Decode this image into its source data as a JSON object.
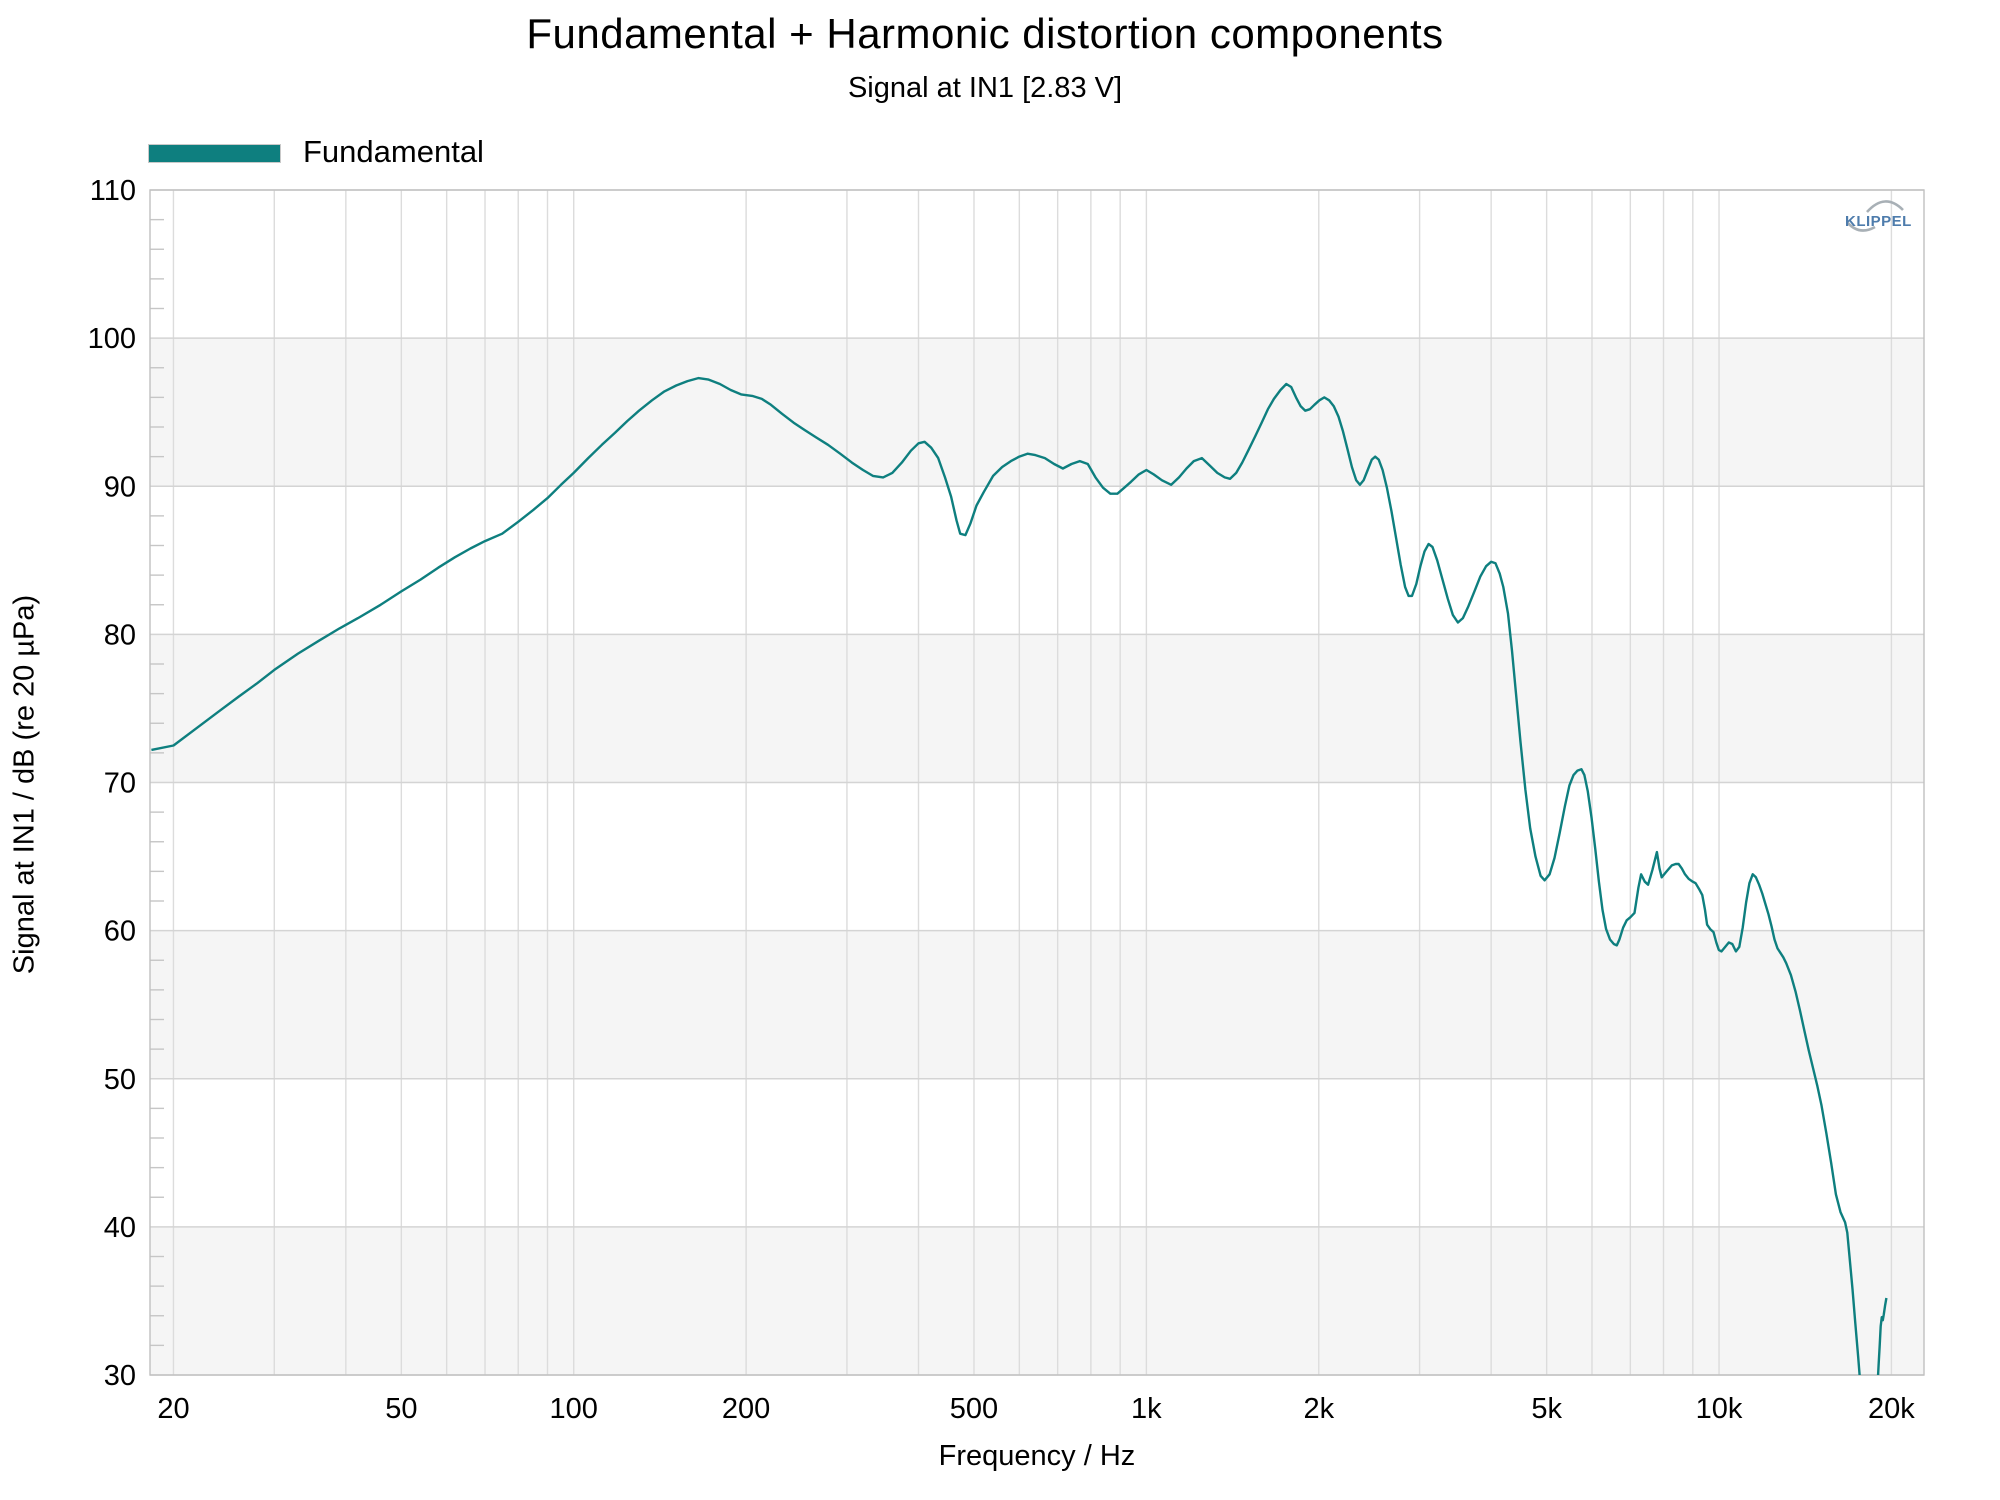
{
  "page": {
    "watermark": "KLIPPEL",
    "colors": {
      "curve": "#0e7f7f",
      "band": "#f5f5f5",
      "grid_vertical": "#dcdcdc",
      "grid_horizontal": "#d4d4d4",
      "spine": "#c0c0c0",
      "minor_tick": "#c6c6c6",
      "logo_blue": "#4e7cac",
      "logo_arc": "#a8b0b6"
    }
  },
  "chart_data": {
    "type": "line",
    "title": "Fundamental + Harmonic distortion components",
    "subtitle": "Signal at IN1 [2.83 V]",
    "xlabel": "Frequency / Hz",
    "ylabel": "Signal at IN1 / dB (re 20 µPa)",
    "x_scale": "log",
    "xlim": [
      18.2,
      22800
    ],
    "ylim": [
      30,
      110
    ],
    "y_major_step": 10,
    "y_minor_step": 2,
    "grid": "on",
    "legend_position": "top-left",
    "bands_high_edges": [
      100,
      80,
      60,
      40
    ],
    "x_gridlines": [
      20,
      30,
      40,
      50,
      60,
      70,
      80,
      90,
      100,
      200,
      300,
      400,
      500,
      600,
      700,
      800,
      900,
      1000,
      2000,
      3000,
      4000,
      5000,
      6000,
      7000,
      8000,
      9000,
      10000,
      20000
    ],
    "x_ticks": [
      {
        "value": 20,
        "label": "20"
      },
      {
        "value": 50,
        "label": "50"
      },
      {
        "value": 100,
        "label": "100"
      },
      {
        "value": 200,
        "label": "200"
      },
      {
        "value": 500,
        "label": "500"
      },
      {
        "value": 1000,
        "label": "1k"
      },
      {
        "value": 2000,
        "label": "2k"
      },
      {
        "value": 5000,
        "label": "5k"
      },
      {
        "value": 10000,
        "label": "10k"
      },
      {
        "value": 20000,
        "label": "20k"
      }
    ],
    "y_ticks": [
      {
        "value": 110,
        "label": "110"
      },
      {
        "value": 100,
        "label": "100"
      },
      {
        "value": 90,
        "label": "90"
      },
      {
        "value": 80,
        "label": "80"
      },
      {
        "value": 70,
        "label": "70"
      },
      {
        "value": 60,
        "label": "60"
      },
      {
        "value": 50,
        "label": "50"
      },
      {
        "value": 40,
        "label": "40"
      },
      {
        "value": 30,
        "label": "30"
      }
    ],
    "legend": [
      {
        "label": "Fundamental",
        "color": "#0e7f7f"
      }
    ],
    "series": [
      {
        "name": "Fundamental",
        "color": "#0e7f7f",
        "points": [
          [
            18.3,
            72.2
          ],
          [
            20,
            72.5
          ],
          [
            22,
            73.7
          ],
          [
            24,
            74.8
          ],
          [
            26,
            75.8
          ],
          [
            28,
            76.7
          ],
          [
            30,
            77.6
          ],
          [
            33,
            78.7
          ],
          [
            36,
            79.6
          ],
          [
            39,
            80.4
          ],
          [
            42,
            81.1
          ],
          [
            46,
            82.0
          ],
          [
            50,
            82.9
          ],
          [
            54,
            83.7
          ],
          [
            58,
            84.5
          ],
          [
            62,
            85.2
          ],
          [
            66,
            85.8
          ],
          [
            70,
            86.3
          ],
          [
            75,
            86.8
          ],
          [
            80,
            87.6
          ],
          [
            85,
            88.4
          ],
          [
            90,
            89.2
          ],
          [
            95,
            90.1
          ],
          [
            100,
            90.9
          ],
          [
            106,
            91.9
          ],
          [
            112,
            92.8
          ],
          [
            118,
            93.6
          ],
          [
            124,
            94.4
          ],
          [
            130,
            95.1
          ],
          [
            137,
            95.8
          ],
          [
            144,
            96.4
          ],
          [
            151,
            96.8
          ],
          [
            158,
            97.1
          ],
          [
            165,
            97.3
          ],
          [
            172,
            97.2
          ],
          [
            180,
            96.9
          ],
          [
            188,
            96.5
          ],
          [
            196,
            96.2
          ],
          [
            205,
            96.1
          ],
          [
            213,
            95.9
          ],
          [
            221,
            95.5
          ],
          [
            231,
            94.9
          ],
          [
            242,
            94.3
          ],
          [
            253,
            93.8
          ],
          [
            265,
            93.3
          ],
          [
            278,
            92.8
          ],
          [
            292,
            92.2
          ],
          [
            306,
            91.6
          ],
          [
            320,
            91.1
          ],
          [
            333,
            90.7
          ],
          [
            347,
            90.6
          ],
          [
            360,
            90.9
          ],
          [
            374,
            91.6
          ],
          [
            388,
            92.4
          ],
          [
            400,
            92.9
          ],
          [
            410,
            93.0
          ],
          [
            421,
            92.6
          ],
          [
            433,
            91.9
          ],
          [
            445,
            90.6
          ],
          [
            456,
            89.3
          ],
          [
            466,
            87.7
          ],
          [
            473,
            86.8
          ],
          [
            483,
            86.7
          ],
          [
            493,
            87.5
          ],
          [
            505,
            88.7
          ],
          [
            520,
            89.6
          ],
          [
            540,
            90.7
          ],
          [
            560,
            91.3
          ],
          [
            580,
            91.7
          ],
          [
            600,
            92.0
          ],
          [
            620,
            92.2
          ],
          [
            640,
            92.1
          ],
          [
            665,
            91.9
          ],
          [
            690,
            91.5
          ],
          [
            715,
            91.2
          ],
          [
            740,
            91.5
          ],
          [
            765,
            91.7
          ],
          [
            790,
            91.5
          ],
          [
            815,
            90.6
          ],
          [
            840,
            89.9
          ],
          [
            865,
            89.5
          ],
          [
            890,
            89.5
          ],
          [
            915,
            89.9
          ],
          [
            940,
            90.3
          ],
          [
            970,
            90.8
          ],
          [
            1000,
            91.1
          ],
          [
            1030,
            90.8
          ],
          [
            1065,
            90.4
          ],
          [
            1105,
            90.1
          ],
          [
            1140,
            90.6
          ],
          [
            1175,
            91.2
          ],
          [
            1210,
            91.7
          ],
          [
            1250,
            91.9
          ],
          [
            1290,
            91.4
          ],
          [
            1330,
            90.9
          ],
          [
            1370,
            90.6
          ],
          [
            1400,
            90.5
          ],
          [
            1435,
            90.9
          ],
          [
            1470,
            91.6
          ],
          [
            1510,
            92.5
          ],
          [
            1550,
            93.4
          ],
          [
            1590,
            94.3
          ],
          [
            1630,
            95.2
          ],
          [
            1670,
            95.9
          ],
          [
            1715,
            96.5
          ],
          [
            1755,
            96.9
          ],
          [
            1790,
            96.7
          ],
          [
            1825,
            96.0
          ],
          [
            1860,
            95.4
          ],
          [
            1895,
            95.1
          ],
          [
            1930,
            95.2
          ],
          [
            1965,
            95.5
          ],
          [
            2005,
            95.8
          ],
          [
            2045,
            96.0
          ],
          [
            2085,
            95.8
          ],
          [
            2125,
            95.4
          ],
          [
            2165,
            94.7
          ],
          [
            2205,
            93.7
          ],
          [
            2245,
            92.5
          ],
          [
            2285,
            91.3
          ],
          [
            2325,
            90.4
          ],
          [
            2360,
            90.1
          ],
          [
            2395,
            90.4
          ],
          [
            2435,
            91.1
          ],
          [
            2475,
            91.8
          ],
          [
            2510,
            92.0
          ],
          [
            2545,
            91.8
          ],
          [
            2585,
            91.1
          ],
          [
            2630,
            89.9
          ],
          [
            2680,
            88.3
          ],
          [
            2730,
            86.5
          ],
          [
            2780,
            84.7
          ],
          [
            2830,
            83.2
          ],
          [
            2870,
            82.6
          ],
          [
            2910,
            82.6
          ],
          [
            2960,
            83.4
          ],
          [
            3010,
            84.6
          ],
          [
            3060,
            85.6
          ],
          [
            3110,
            86.1
          ],
          [
            3160,
            85.9
          ],
          [
            3220,
            85.0
          ],
          [
            3290,
            83.7
          ],
          [
            3360,
            82.4
          ],
          [
            3430,
            81.3
          ],
          [
            3500,
            80.8
          ],
          [
            3570,
            81.1
          ],
          [
            3650,
            81.9
          ],
          [
            3740,
            82.9
          ],
          [
            3830,
            83.9
          ],
          [
            3920,
            84.6
          ],
          [
            4000,
            84.9
          ],
          [
            4070,
            84.8
          ],
          [
            4140,
            84.1
          ],
          [
            4200,
            83.2
          ],
          [
            4280,
            81.4
          ],
          [
            4350,
            78.9
          ],
          [
            4420,
            76.0
          ],
          [
            4500,
            72.8
          ],
          [
            4590,
            69.5
          ],
          [
            4680,
            66.9
          ],
          [
            4780,
            65.0
          ],
          [
            4880,
            63.7
          ],
          [
            4960,
            63.4
          ],
          [
            5060,
            63.8
          ],
          [
            5160,
            64.9
          ],
          [
            5270,
            66.6
          ],
          [
            5380,
            68.4
          ],
          [
            5480,
            69.8
          ],
          [
            5570,
            70.5
          ],
          [
            5660,
            70.8
          ],
          [
            5750,
            70.9
          ],
          [
            5820,
            70.5
          ],
          [
            5900,
            69.4
          ],
          [
            5990,
            67.6
          ],
          [
            6080,
            65.5
          ],
          [
            6170,
            63.3
          ],
          [
            6260,
            61.4
          ],
          [
            6350,
            60.1
          ],
          [
            6450,
            59.4
          ],
          [
            6550,
            59.1
          ],
          [
            6630,
            59.0
          ],
          [
            6700,
            59.4
          ],
          [
            6800,
            60.2
          ],
          [
            6900,
            60.7
          ],
          [
            7000,
            60.9
          ],
          [
            7120,
            61.2
          ],
          [
            7230,
            62.9
          ],
          [
            7310,
            63.8
          ],
          [
            7420,
            63.3
          ],
          [
            7520,
            63.1
          ],
          [
            7650,
            64.1
          ],
          [
            7790,
            65.3
          ],
          [
            7870,
            64.2
          ],
          [
            7940,
            63.6
          ],
          [
            8100,
            64.0
          ],
          [
            8270,
            64.4
          ],
          [
            8400,
            64.5
          ],
          [
            8500,
            64.5
          ],
          [
            8610,
            64.2
          ],
          [
            8720,
            63.8
          ],
          [
            8850,
            63.5
          ],
          [
            9000,
            63.3
          ],
          [
            9100,
            63.2
          ],
          [
            9230,
            62.8
          ],
          [
            9350,
            62.4
          ],
          [
            9450,
            61.4
          ],
          [
            9530,
            60.4
          ],
          [
            9650,
            60.1
          ],
          [
            9780,
            59.9
          ],
          [
            9890,
            59.2
          ],
          [
            9990,
            58.7
          ],
          [
            10100,
            58.6
          ],
          [
            10250,
            58.9
          ],
          [
            10400,
            59.2
          ],
          [
            10550,
            59.1
          ],
          [
            10700,
            58.6
          ],
          [
            10850,
            58.9
          ],
          [
            11000,
            60.2
          ],
          [
            11150,
            61.9
          ],
          [
            11300,
            63.2
          ],
          [
            11450,
            63.8
          ],
          [
            11600,
            63.6
          ],
          [
            11750,
            63.1
          ],
          [
            11900,
            62.5
          ],
          [
            12050,
            61.8
          ],
          [
            12200,
            61.1
          ],
          [
            12350,
            60.3
          ],
          [
            12500,
            59.4
          ],
          [
            12650,
            58.8
          ],
          [
            12800,
            58.5
          ],
          [
            12950,
            58.2
          ],
          [
            13100,
            57.8
          ],
          [
            13350,
            57.0
          ],
          [
            13600,
            55.9
          ],
          [
            13850,
            54.6
          ],
          [
            14100,
            53.2
          ],
          [
            14350,
            51.9
          ],
          [
            14600,
            50.7
          ],
          [
            14850,
            49.5
          ],
          [
            15100,
            48.2
          ],
          [
            15400,
            46.3
          ],
          [
            15700,
            44.3
          ],
          [
            16000,
            42.2
          ],
          [
            16300,
            41.0
          ],
          [
            16600,
            40.3
          ],
          [
            16750,
            39.6
          ],
          [
            16900,
            38.0
          ],
          [
            17100,
            35.8
          ],
          [
            17300,
            33.5
          ],
          [
            17500,
            31.2
          ],
          [
            17600,
            30.0
          ],
          [
            17800,
            27.5
          ],
          [
            18100,
            25.5
          ],
          [
            18400,
            25.0
          ],
          [
            18700,
            26.5
          ],
          [
            18900,
            29.0
          ],
          [
            19000,
            30.8
          ],
          [
            19080,
            32.0
          ],
          [
            19160,
            33.3
          ],
          [
            19240,
            33.9
          ],
          [
            19320,
            33.7
          ],
          [
            19400,
            34.1
          ],
          [
            19500,
            34.7
          ],
          [
            19600,
            35.2
          ]
        ]
      }
    ]
  }
}
